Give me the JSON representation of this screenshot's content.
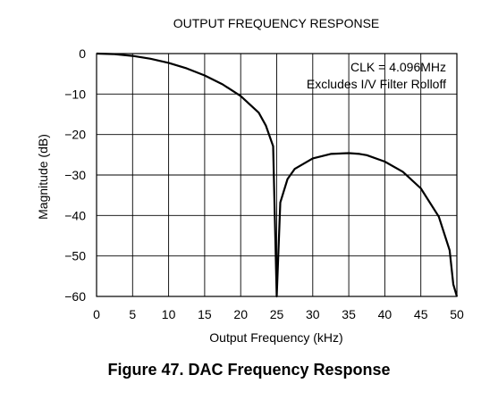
{
  "caption": "Figure 47.  DAC Frequency Response",
  "chart_data": {
    "type": "line",
    "title": "OUTPUT FREQUENCY RESPONSE",
    "xlabel": "Output Frequency (kHz)",
    "ylabel": "Magnitude (dB)",
    "xlim": [
      0,
      50
    ],
    "ylim": [
      -60,
      0
    ],
    "xticks": [
      0,
      5,
      10,
      15,
      20,
      25,
      30,
      35,
      40,
      45,
      50
    ],
    "xtick_labels": [
      "0",
      "5",
      "10",
      "15",
      "20",
      "25",
      "30",
      "35",
      "40",
      "45",
      "50"
    ],
    "yticks": [
      0,
      -10,
      -20,
      -30,
      -40,
      -50,
      -60
    ],
    "ytick_labels": [
      "0",
      "−10",
      "−20",
      "−30",
      "−40",
      "−50",
      "−60"
    ],
    "grid": true,
    "annotations": [
      "CLK = 4.096MHz",
      "Excludes I/V Filter Rolloff"
    ],
    "series": [
      {
        "color": "#000000",
        "x": [
          0,
          2.5,
          5,
          7.5,
          10,
          12.5,
          15,
          17.5,
          20,
          22.5,
          23.5,
          24.5,
          25,
          25.5,
          26.5,
          27.5,
          30,
          32.5,
          35,
          36.5,
          37.5,
          40,
          42.5,
          45,
          47.5,
          49,
          49.5,
          50
        ],
        "y": [
          0,
          -0.14,
          -0.57,
          -1.28,
          -2.3,
          -3.66,
          -5.4,
          -7.6,
          -10.5,
          -14.6,
          -17.8,
          -22.9,
          -60,
          -36.8,
          -31.0,
          -28.5,
          -25.9,
          -24.8,
          -24.6,
          -24.8,
          -25.1,
          -26.7,
          -29.2,
          -33.3,
          -40.3,
          -48.6,
          -57.0,
          -60
        ]
      }
    ]
  }
}
